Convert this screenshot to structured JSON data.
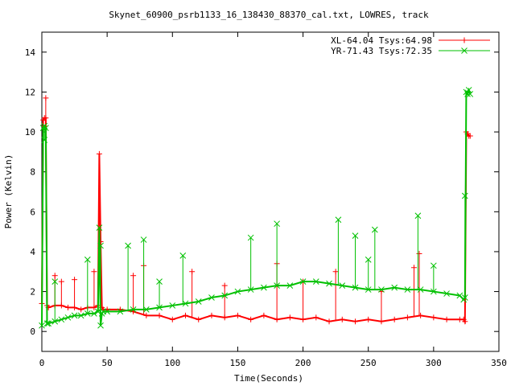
{
  "chart_data": {
    "type": "line",
    "title": "Skynet_60900_psrb1133_16_138430_88370_cal.txt, LOWRES, track",
    "xlabel": "Time(Seconds)",
    "ylabel": "Power (Kelvin)",
    "xlim": [
      0,
      350
    ],
    "ylim": [
      -1,
      15
    ],
    "xticks": [
      0,
      50,
      100,
      150,
      200,
      250,
      300,
      350
    ],
    "yticks": [
      0,
      2,
      4,
      6,
      8,
      10,
      12,
      14
    ],
    "grid": false,
    "legend_position": "top-right",
    "series": [
      {
        "name": "XL-64.04 Tsys:64.98",
        "color": "#ff0000",
        "marker": "plus",
        "x": [
          0,
          1,
          2,
          3,
          4,
          5,
          10,
          15,
          20,
          25,
          30,
          35,
          40,
          43,
          44,
          45,
          46,
          47,
          50,
          60,
          70,
          80,
          90,
          100,
          110,
          120,
          130,
          140,
          150,
          160,
          170,
          180,
          190,
          200,
          210,
          220,
          230,
          240,
          250,
          260,
          270,
          280,
          290,
          300,
          310,
          320,
          323,
          324,
          325,
          326,
          327,
          328
        ],
        "y": [
          1.4,
          10.6,
          10.7,
          10.7,
          1.3,
          1.2,
          1.3,
          1.3,
          1.2,
          1.2,
          1.1,
          1.2,
          1.2,
          1.3,
          8.9,
          4.5,
          1.2,
          1.1,
          1.1,
          1.1,
          1.0,
          0.8,
          0.8,
          0.6,
          0.8,
          0.6,
          0.8,
          0.7,
          0.8,
          0.6,
          0.8,
          0.6,
          0.7,
          0.6,
          0.7,
          0.5,
          0.6,
          0.5,
          0.6,
          0.5,
          0.6,
          0.7,
          0.8,
          0.7,
          0.6,
          0.6,
          0.6,
          0.5,
          10.0,
          9.9,
          9.8,
          9.8
        ],
        "spikes": [
          [
            3,
            11.7
          ],
          [
            10,
            2.8
          ],
          [
            15,
            2.5
          ],
          [
            25,
            2.6
          ],
          [
            40,
            3.0
          ],
          [
            70,
            2.8
          ],
          [
            78,
            3.3
          ],
          [
            115,
            3.0
          ],
          [
            140,
            2.3
          ],
          [
            180,
            3.4
          ],
          [
            200,
            2.5
          ],
          [
            225,
            3.0
          ],
          [
            260,
            2.0
          ],
          [
            285,
            3.2
          ],
          [
            289,
            3.9
          ]
        ]
      },
      {
        "name": "YR-71.43 Tsys:72.35",
        "color": "#00c000",
        "marker": "cross",
        "x": [
          0,
          1,
          2,
          3,
          4,
          5,
          10,
          15,
          20,
          25,
          30,
          35,
          40,
          43,
          44,
          45,
          46,
          47,
          50,
          60,
          70,
          80,
          90,
          100,
          110,
          120,
          130,
          140,
          150,
          160,
          170,
          180,
          190,
          200,
          210,
          220,
          230,
          240,
          250,
          260,
          270,
          280,
          290,
          300,
          310,
          320,
          323,
          324,
          325,
          326,
          327,
          328
        ],
        "y": [
          0.3,
          10.2,
          10.3,
          10.2,
          0.4,
          0.4,
          0.5,
          0.6,
          0.7,
          0.8,
          0.8,
          0.9,
          0.9,
          1.0,
          5.2,
          0.3,
          0.9,
          1.0,
          1.0,
          1.0,
          1.1,
          1.1,
          1.2,
          1.3,
          1.4,
          1.5,
          1.7,
          1.8,
          2.0,
          2.1,
          2.2,
          2.3,
          2.3,
          2.5,
          2.5,
          2.4,
          2.3,
          2.2,
          2.1,
          2.1,
          2.2,
          2.1,
          2.1,
          2.0,
          1.9,
          1.8,
          1.6,
          1.7,
          12.0,
          11.9,
          12.1,
          11.9
        ],
        "spikes": [
          [
            2,
            9.6
          ],
          [
            10,
            2.5
          ],
          [
            35,
            3.6
          ],
          [
            45,
            4.3
          ],
          [
            66,
            4.3
          ],
          [
            78,
            4.6
          ],
          [
            90,
            2.5
          ],
          [
            108,
            3.8
          ],
          [
            160,
            4.7
          ],
          [
            180,
            5.4
          ],
          [
            227,
            5.6
          ],
          [
            240,
            4.8
          ],
          [
            250,
            3.6
          ],
          [
            255,
            5.1
          ],
          [
            288,
            5.8
          ],
          [
            300,
            3.3
          ],
          [
            324,
            6.8
          ]
        ]
      }
    ]
  }
}
